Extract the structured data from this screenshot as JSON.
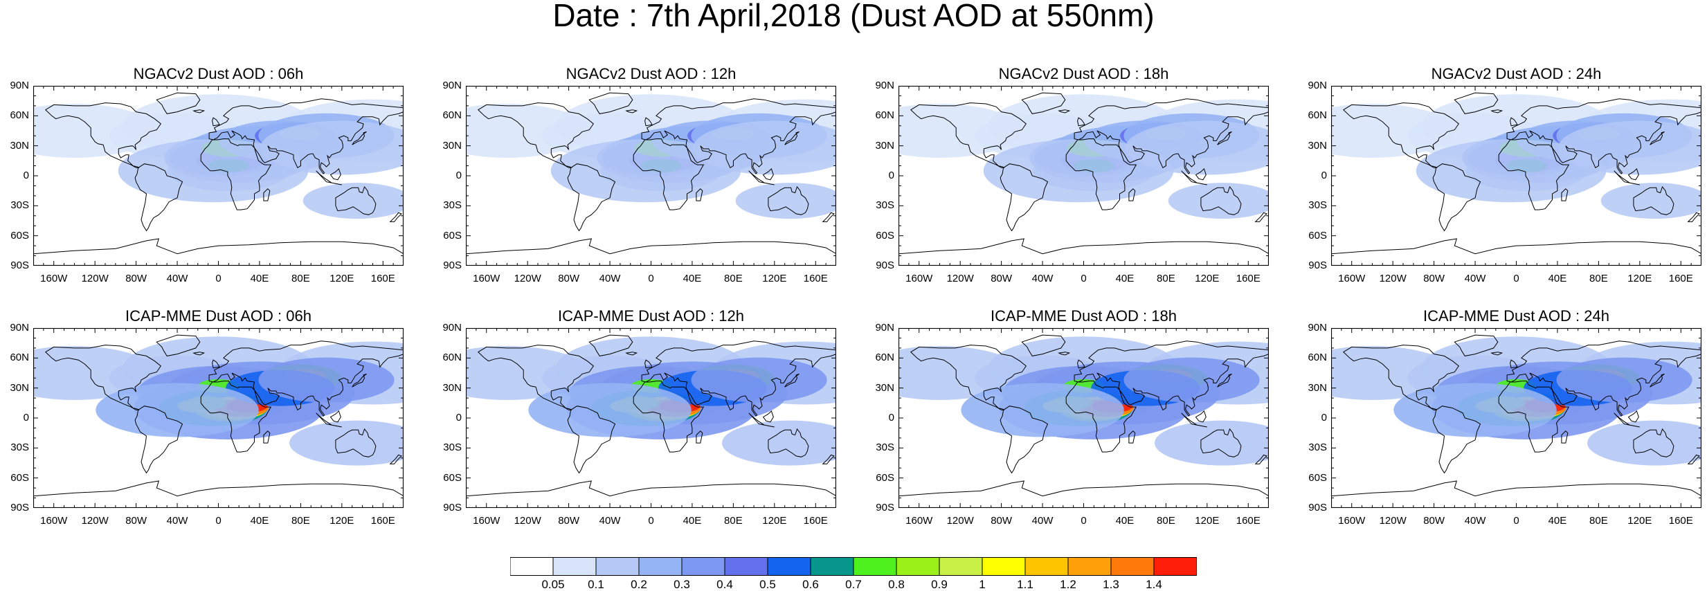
{
  "title": "Date : 7th April,2018 (Dust AOD at 550nm)",
  "panels": [
    {
      "title": "NGACv2 Dust AOD : 06h",
      "model": "NGACv2",
      "forecast_hour": "06h"
    },
    {
      "title": "NGACv2 Dust AOD : 12h",
      "model": "NGACv2",
      "forecast_hour": "12h"
    },
    {
      "title": "NGACv2 Dust AOD : 18h",
      "model": "NGACv2",
      "forecast_hour": "18h"
    },
    {
      "title": "NGACv2 Dust AOD : 24h",
      "model": "NGACv2",
      "forecast_hour": "24h"
    },
    {
      "title": "ICAP-MME Dust AOD : 06h",
      "model": "ICAP-MME",
      "forecast_hour": "06h"
    },
    {
      "title": "ICAP-MME Dust AOD : 12h",
      "model": "ICAP-MME",
      "forecast_hour": "12h"
    },
    {
      "title": "ICAP-MME Dust AOD : 18h",
      "model": "ICAP-MME",
      "forecast_hour": "18h"
    },
    {
      "title": "ICAP-MME Dust AOD : 24h",
      "model": "ICAP-MME",
      "forecast_hour": "24h"
    }
  ],
  "axes": {
    "lat_labels": [
      "90N",
      "60N",
      "30N",
      "0",
      "30S",
      "60S",
      "90S"
    ],
    "lon_labels": [
      "160W",
      "120W",
      "80W",
      "40W",
      "0",
      "40E",
      "80E",
      "120E",
      "160E"
    ]
  },
  "colorbar": {
    "labels": [
      "0.05",
      "0.1",
      "0.2",
      "0.3",
      "0.4",
      "0.5",
      "0.6",
      "0.7",
      "0.8",
      "0.9",
      "1",
      "1.1",
      "1.2",
      "1.3",
      "1.4"
    ],
    "colors": [
      "#ffffff",
      "#d8e4fa",
      "#b4c8f6",
      "#95b4f5",
      "#7d98f0",
      "#6370ec",
      "#1464f0",
      "#06968c",
      "#4ef01e",
      "#9cf01a",
      "#c8f046",
      "#ffff00",
      "#ffc400",
      "#ffa00a",
      "#ff7a0a",
      "#ff1e0a"
    ]
  }
}
